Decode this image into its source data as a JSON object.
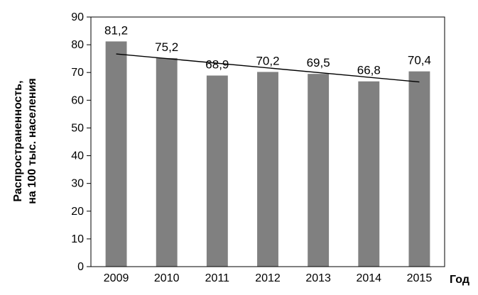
{
  "chart_data": {
    "type": "bar",
    "categories": [
      "2009",
      "2010",
      "2011",
      "2012",
      "2013",
      "2014",
      "2015"
    ],
    "values": [
      81.2,
      75.2,
      68.9,
      70.2,
      69.5,
      66.8,
      70.4
    ],
    "data_labels": [
      "81,2",
      "75,2",
      "68,9",
      "70,2",
      "69,5",
      "66,8",
      "70,4"
    ],
    "yticks": [
      0,
      10,
      20,
      30,
      40,
      50,
      60,
      70,
      80,
      90
    ],
    "ylim": [
      0,
      90
    ],
    "xlabel": "Год",
    "ylabel_lines": [
      "Распространенность,",
      "на 100 тыс. населения"
    ],
    "grid": "none",
    "trendline": {
      "type": "linear",
      "start": 76.7,
      "end": 66.6
    },
    "colors": {
      "bar": "#808080",
      "frame": "#000000",
      "trend": "#000000"
    }
  }
}
